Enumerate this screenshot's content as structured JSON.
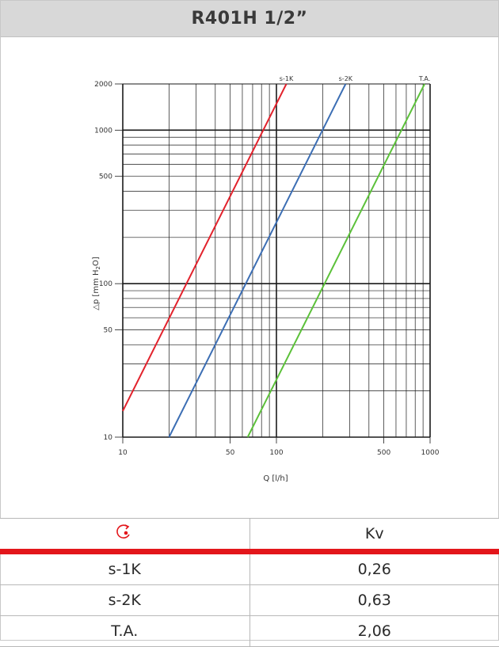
{
  "title": "R401H 1/2”",
  "chart_data": {
    "type": "line",
    "xscale": "log",
    "yscale": "log",
    "xlim": [
      10,
      1000
    ],
    "ylim": [
      10,
      2000
    ],
    "xlabel": "Q [l/h]",
    "ylabel": "△p [mm H2O]",
    "x_ticks": [
      "10",
      "50",
      "100",
      "500",
      "1000"
    ],
    "x_tick_values": [
      10,
      50,
      100,
      500,
      1000
    ],
    "y_ticks": [
      "10",
      "50",
      "100",
      "500",
      "1000",
      "2000"
    ],
    "y_tick_values": [
      10,
      50,
      100,
      500,
      1000,
      2000
    ],
    "grid": true,
    "series": [
      {
        "name": "s-1K",
        "color": "#e2222c",
        "x": [
          10,
          116
        ],
        "y": [
          14.8,
          2000
        ]
      },
      {
        "name": "s-2K",
        "color": "#3c6eb4",
        "x": [
          20,
          282
        ],
        "y": [
          10,
          2000
        ]
      },
      {
        "name": "T.A.",
        "color": "#5cc13a",
        "x": [
          65,
          921
        ],
        "y": [
          10,
          2000
        ]
      }
    ]
  },
  "table": {
    "header_icon": "circular-arrow-icon",
    "header_value": "Kv",
    "accent_color": "#e3161b",
    "rows": [
      {
        "label": "s-1K",
        "value": "0,26"
      },
      {
        "label": "s-2K",
        "value": "0,63"
      },
      {
        "label": "T.A.",
        "value": "2,06"
      }
    ]
  }
}
